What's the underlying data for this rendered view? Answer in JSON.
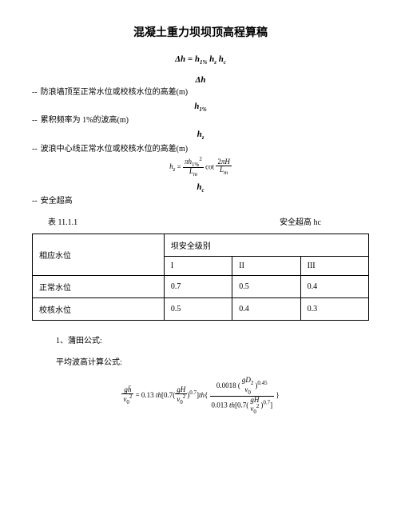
{
  "title": "混凝土重力坝坝顶高程算稿",
  "main_formula": "Δh = h₁% h_z h_c",
  "symbols": {
    "dh": "Δh",
    "dh_def": "防浪墙顶至正常水位或校核水位的高差(m)",
    "h1": "h₁%",
    "h1_def": "累积频率为 1%的波高(m)",
    "hz": "h_z",
    "hz_def": "波浪中心线正常水位或校核水位的高差(m)",
    "hz_formula": "h_z = (πh₁%²/L_m) · cot(2πH/L_m)",
    "hc": "h_c",
    "hc_def": "安全超高"
  },
  "table": {
    "caption_left": "表 11.1.1",
    "caption_right": "安全超高  hc",
    "header_col1": "相应水位",
    "header_col2": "坝安全级别",
    "sub_headers": [
      "I",
      "II",
      "III"
    ],
    "rows": [
      {
        "label": "正常水位",
        "values": [
          "0.7",
          "0.5",
          "0.4"
        ]
      },
      {
        "label": "校核水位",
        "values": [
          "0.5",
          "0.4",
          "0.3"
        ]
      }
    ]
  },
  "section1_title": "1、蒲田公式:",
  "section1_sub": "平均波高计算公式:",
  "complex_formula": "gh̄/v₀² = 0.13 th[0.7(gH/v₀²)^0.7] th{ 0.0018(gD₂/v₀)^0.45 / 0.013 th[0.7(gH/v₀²)^0.7] }",
  "style": {
    "title_fontsize": 14,
    "body_fontsize": 11,
    "table_fontsize": 10,
    "text_color": "#000000",
    "background_color": "#ffffff",
    "border_color": "#000000"
  }
}
